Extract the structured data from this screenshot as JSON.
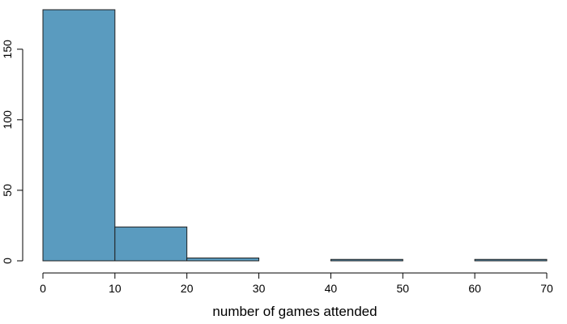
{
  "chart_data": {
    "type": "bar",
    "subtype": "histogram",
    "title": "",
    "xlabel": "number of games attended",
    "ylabel": "",
    "bins": [
      {
        "start": 0,
        "end": 10,
        "count": 178
      },
      {
        "start": 10,
        "end": 20,
        "count": 24
      },
      {
        "start": 20,
        "end": 30,
        "count": 2
      },
      {
        "start": 30,
        "end": 40,
        "count": 0
      },
      {
        "start": 40,
        "end": 50,
        "count": 1
      },
      {
        "start": 50,
        "end": 60,
        "count": 0
      },
      {
        "start": 60,
        "end": 70,
        "count": 1
      }
    ],
    "xlim": [
      0,
      70
    ],
    "ylim": [
      0,
      178
    ],
    "x_ticks": [
      0,
      10,
      20,
      30,
      40,
      50,
      60,
      70
    ],
    "y_ticks": [
      0,
      50,
      100,
      150
    ],
    "bar_color": "#5a9bbf",
    "bar_edge_color": "#1f1f1f",
    "grid": false,
    "legend": "none"
  }
}
